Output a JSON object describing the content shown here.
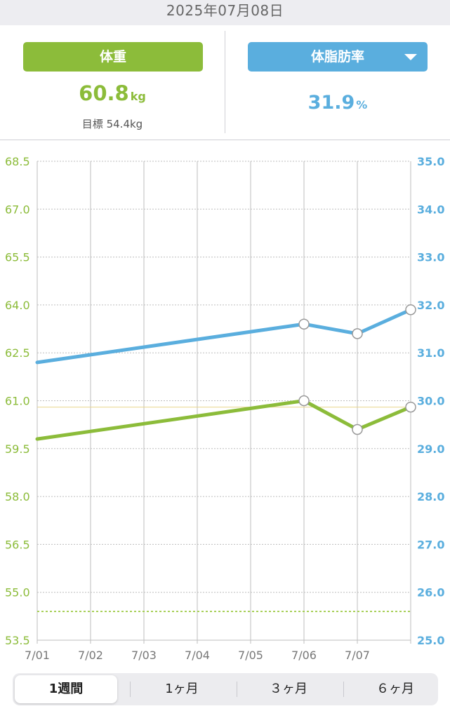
{
  "header": {
    "date": "2025年07月08日"
  },
  "weight_panel": {
    "label": "体重",
    "value": "60.8",
    "unit": "kg",
    "goal_label": "目標",
    "goal_value": "54.4kg"
  },
  "fat_panel": {
    "label": "体脂肪率",
    "value": "31.9",
    "unit": "%",
    "dropdown_icon": "caret-down-icon"
  },
  "colors": {
    "weight": "#8cbc3a",
    "fat": "#5aaede",
    "goal_line": "#a8d05a",
    "grid": "#bdbdbd"
  },
  "chart_data": {
    "type": "line",
    "x_labels": [
      "7/01",
      "7/02",
      "7/03",
      "7/04",
      "7/05",
      "7/06",
      "7/07"
    ],
    "left_axis": {
      "ticks": [
        "68.5",
        "67.0",
        "65.5",
        "64.0",
        "62.5",
        "61.0",
        "59.5",
        "58.0",
        "56.5",
        "55.0",
        "53.5"
      ],
      "range": [
        53.5,
        68.5
      ]
    },
    "right_axis": {
      "ticks": [
        "35.0",
        "34.0",
        "33.0",
        "32.0",
        "31.0",
        "30.0",
        "29.0",
        "28.0",
        "27.0",
        "26.0",
        "25.0"
      ],
      "range": [
        25.0,
        35.0
      ]
    },
    "x_range": [
      0,
      7
    ],
    "series": [
      {
        "axis": "right",
        "color": "#5aaede",
        "points": [
          {
            "x": 0,
            "y": 30.8,
            "marker": false
          },
          {
            "x": 5,
            "y": 31.6,
            "marker": true
          },
          {
            "x": 6,
            "y": 31.4,
            "marker": true
          },
          {
            "x": 7,
            "y": 31.9,
            "marker": true
          }
        ]
      },
      {
        "axis": "left",
        "color": "#8cbc3a",
        "points": [
          {
            "x": 0,
            "y": 59.8,
            "marker": false
          },
          {
            "x": 5,
            "y": 61.0,
            "marker": true
          },
          {
            "x": 6,
            "y": 60.1,
            "marker": true
          },
          {
            "x": 7,
            "y": 60.8,
            "marker": true
          }
        ]
      }
    ],
    "reference_lines": [
      {
        "axis": "left",
        "y": 60.8,
        "style": "solid",
        "color": "#e8d48a"
      },
      {
        "axis": "left",
        "y": 54.4,
        "style": "dotted",
        "color": "#a8d05a"
      }
    ]
  },
  "period_tabs": [
    {
      "label": "1週間",
      "active": true
    },
    {
      "label": "1ヶ月",
      "active": false
    },
    {
      "label": "３ヶ月",
      "active": false
    },
    {
      "label": "６ヶ月",
      "active": false
    }
  ]
}
